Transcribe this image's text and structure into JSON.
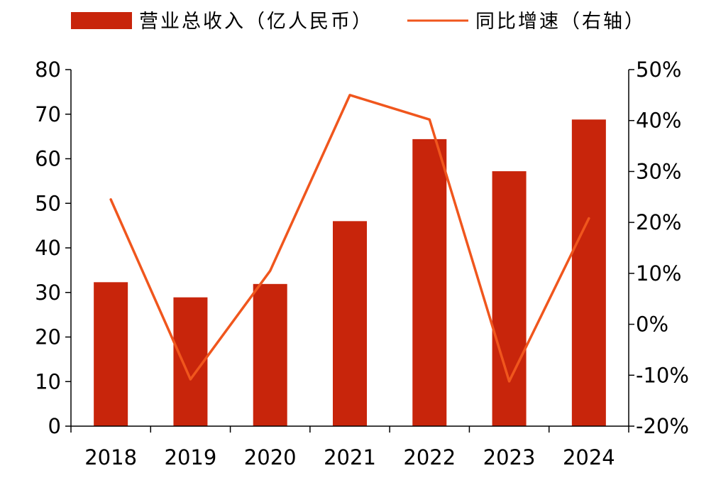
{
  "chart_data": {
    "type": "bar+line",
    "title": "",
    "categories": [
      "2018",
      "2019",
      "2020",
      "2021",
      "2022",
      "2023",
      "2024"
    ],
    "series": [
      {
        "name": "营业总收入（亿人民币）",
        "type": "bar",
        "axis": "left",
        "color": "#c8250b",
        "values": [
          32.3,
          28.9,
          31.9,
          46.0,
          64.4,
          57.2,
          68.8
        ]
      },
      {
        "name": "同比增速（右轴）",
        "type": "line",
        "axis": "right",
        "color": "#f0561d",
        "values": [
          24.5,
          -10.8,
          10.5,
          45.0,
          40.2,
          -11.2,
          20.8
        ]
      }
    ],
    "y_left": {
      "min": 0,
      "max": 80,
      "step": 10,
      "ticks": [
        "0",
        "10",
        "20",
        "30",
        "40",
        "50",
        "60",
        "70",
        "80"
      ]
    },
    "y_right": {
      "min": -20,
      "max": 50,
      "step": 10,
      "ticks": [
        "-20%",
        "-10%",
        "0%",
        "10%",
        "20%",
        "30%",
        "40%",
        "50%"
      ]
    },
    "legend": {
      "placement": "top"
    },
    "grid": false
  }
}
